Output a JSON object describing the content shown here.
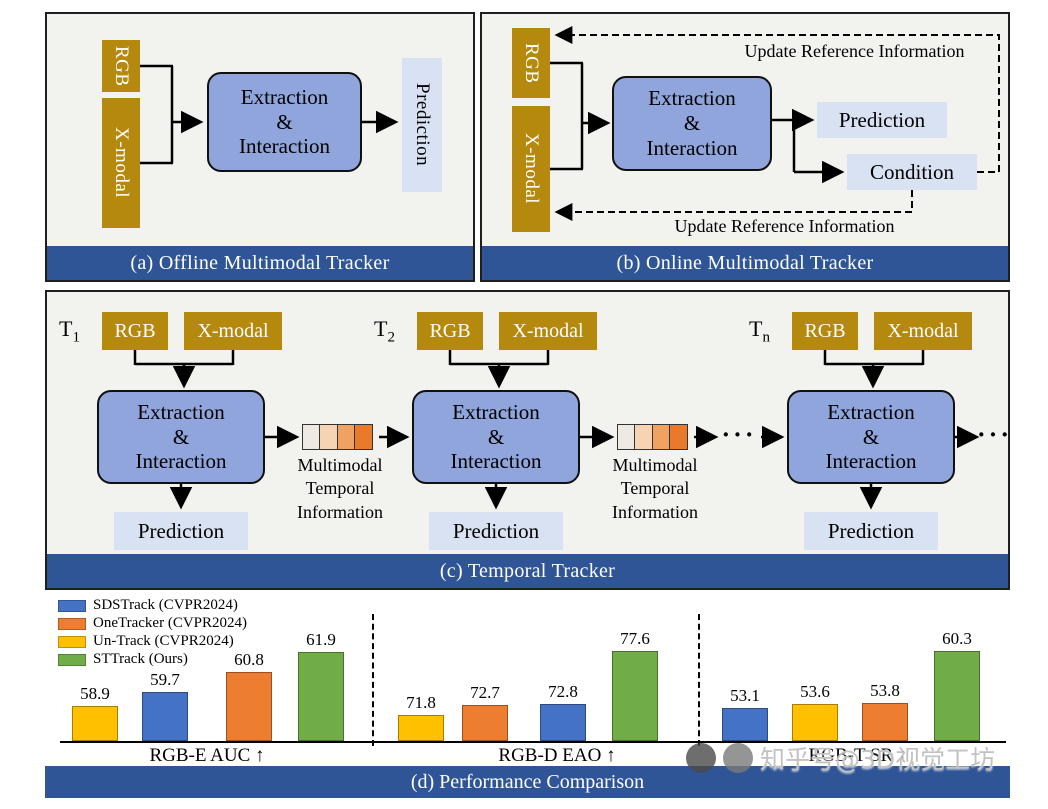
{
  "panels": {
    "a": {
      "caption": "(a) Offline Multimodal Tracker",
      "rgb": "RGB",
      "xmodal": "X-modal",
      "block": [
        "Extraction",
        "&",
        "Interaction"
      ],
      "prediction": "Prediction"
    },
    "b": {
      "caption": "(b) Online Multimodal Tracker",
      "rgb": "RGB",
      "xmodal": "X-modal",
      "block": [
        "Extraction",
        "&",
        "Interaction"
      ],
      "prediction": "Prediction",
      "condition": "Condition",
      "update_top": "Update Reference Information",
      "update_bottom": "Update Reference Information"
    },
    "c": {
      "caption": "(c) Temporal Tracker",
      "columns": [
        {
          "t": "T",
          "sub": "1"
        },
        {
          "t": "T",
          "sub": "2"
        },
        {
          "t": "T",
          "sub": "n"
        }
      ],
      "rgb": "RGB",
      "xmodal": "X-modal",
      "block": [
        "Extraction",
        "&",
        "Interaction"
      ],
      "prediction": "Prediction",
      "memory_label": [
        "Multimodal",
        "Temporal",
        "Information"
      ],
      "memory_cells": [
        "#EFE9E3",
        "#F6D3B2",
        "#F0A262",
        "#E87B2B"
      ],
      "ellipsis": "···"
    },
    "d": {
      "caption": "(d) Performance Comparison",
      "watermark": "知乎号@3D视觉工坊"
    }
  },
  "chart_data": {
    "type": "bar",
    "title": "(d) Performance Comparison",
    "legend_position": "top-left",
    "grid": false,
    "value_labels": true,
    "legend": [
      {
        "name": "SDSTrack (CVPR2024)",
        "color": "#4472C4"
      },
      {
        "name": "OneTracker (CVPR2024)",
        "color": "#ED7D31"
      },
      {
        "name": "Un-Track (CVPR2024)",
        "color": "#FFC000"
      },
      {
        "name": "STTrack (Ours)",
        "color": "#70AD47"
      }
    ],
    "groups": [
      {
        "label": "RGB-E AUC ↑",
        "ylim": [
          57.0,
          62.5
        ],
        "bars": [
          {
            "series": "Un-Track (CVPR2024)",
            "color": "#FFC000",
            "value": 58.9
          },
          {
            "series": "SDSTrack (CVPR2024)",
            "color": "#4472C4",
            "value": 59.7
          },
          {
            "series": "OneTracker (CVPR2024)",
            "color": "#ED7D31",
            "value": 60.8
          },
          {
            "series": "STTrack (Ours)",
            "color": "#70AD47",
            "value": 61.9
          }
        ]
      },
      {
        "label": "RGB-D EAO ↑",
        "ylim": [
          69.5,
          78.5
        ],
        "bars": [
          {
            "series": "Un-Track (CVPR2024)",
            "color": "#FFC000",
            "value": 71.8
          },
          {
            "series": "OneTracker (CVPR2024)",
            "color": "#ED7D31",
            "value": 72.7
          },
          {
            "series": "SDSTrack (CVPR2024)",
            "color": "#4472C4",
            "value": 72.8
          },
          {
            "series": "STTrack (Ours)",
            "color": "#70AD47",
            "value": 77.6
          }
        ]
      },
      {
        "label": "RGB-T SR ↑",
        "ylim": [
          49.0,
          61.5
        ],
        "bars": [
          {
            "series": "SDSTrack (CVPR2024)",
            "color": "#4472C4",
            "value": 53.1
          },
          {
            "series": "Un-Track (CVPR2024)",
            "color": "#FFC000",
            "value": 53.6
          },
          {
            "series": "OneTracker (CVPR2024)",
            "color": "#ED7D31",
            "value": 53.8
          },
          {
            "series": "STTrack (Ours)",
            "color": "#70AD47",
            "value": 60.3
          }
        ]
      }
    ]
  }
}
